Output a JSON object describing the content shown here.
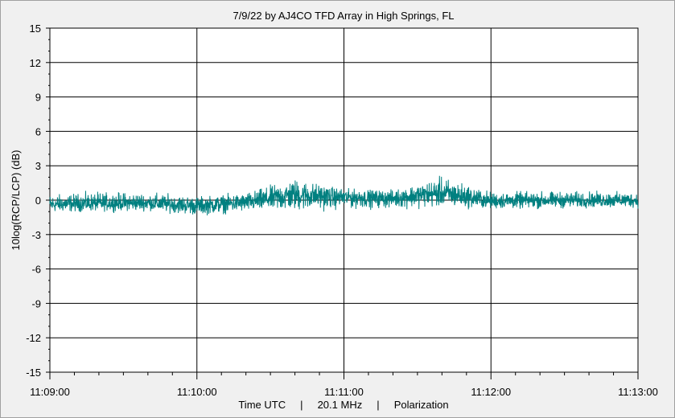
{
  "chart_data": {
    "type": "line",
    "title": "7/9/22  by  AJ4CO TFD Array  in  High Springs, FL",
    "xlabel": "Time UTC     |     20.1 MHz     |     Polarization",
    "ylabel": "10log(RCP/LCP) (dB)",
    "xlim": [
      "11:09:00",
      "11:13:00"
    ],
    "ylim": [
      -15,
      15
    ],
    "x_ticks": [
      "11:09:00",
      "11:10:00",
      "11:11:00",
      "11:12:00",
      "11:13:00"
    ],
    "y_ticks": [
      15,
      12,
      9,
      6,
      3,
      0,
      -3,
      -6,
      -9,
      -12,
      -15
    ],
    "y_tick_labels": [
      "15",
      "12",
      "9",
      "6",
      "3",
      "0",
      "-3",
      "-6",
      "-9",
      "-12",
      "-15"
    ],
    "grid": true,
    "series": [
      {
        "color": "#008080",
        "time_step_s": 20,
        "x": [
          "11:09:00",
          "11:09:20",
          "11:09:40",
          "11:10:00",
          "11:10:20",
          "11:10:40",
          "11:11:00",
          "11:11:20",
          "11:11:40",
          "11:12:00",
          "11:12:20",
          "11:12:40",
          "11:13:00"
        ],
        "mean": [
          -0.4,
          -0.3,
          -0.3,
          -0.5,
          -0.2,
          0.5,
          0.3,
          0.2,
          0.6,
          -0.1,
          0.0,
          0.0,
          0.0
        ],
        "envelope_high": [
          0.8,
          1.0,
          1.0,
          0.6,
          0.9,
          2.3,
          1.2,
          1.1,
          2.5,
          1.0,
          1.0,
          1.0,
          0.9
        ],
        "envelope_low": [
          -1.3,
          -1.2,
          -1.1,
          -1.6,
          -1.3,
          -1.5,
          -1.1,
          -1.0,
          -1.0,
          -1.0,
          -1.0,
          -0.9,
          -0.9
        ]
      }
    ]
  },
  "colors": {
    "background": "#f0f0f0",
    "plot_background": "#ffffff",
    "grid": "#000000",
    "trace": "#008080"
  }
}
